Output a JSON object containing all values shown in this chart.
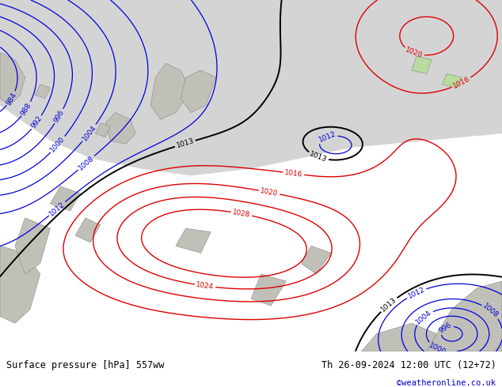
{
  "title_left": "Surface pressure [hPa] 557ww",
  "title_right": "Th 26-09-2024 12:00 UTC (12+72)",
  "credit": "©weatheronline.co.uk",
  "green_land": "#b8dba0",
  "gray_sea": "#d4d4d4",
  "gray_land": "#c0c0b8",
  "bottom_bar_color": "#ffffff",
  "figsize": [
    6.34,
    4.9
  ],
  "dpi": 100
}
